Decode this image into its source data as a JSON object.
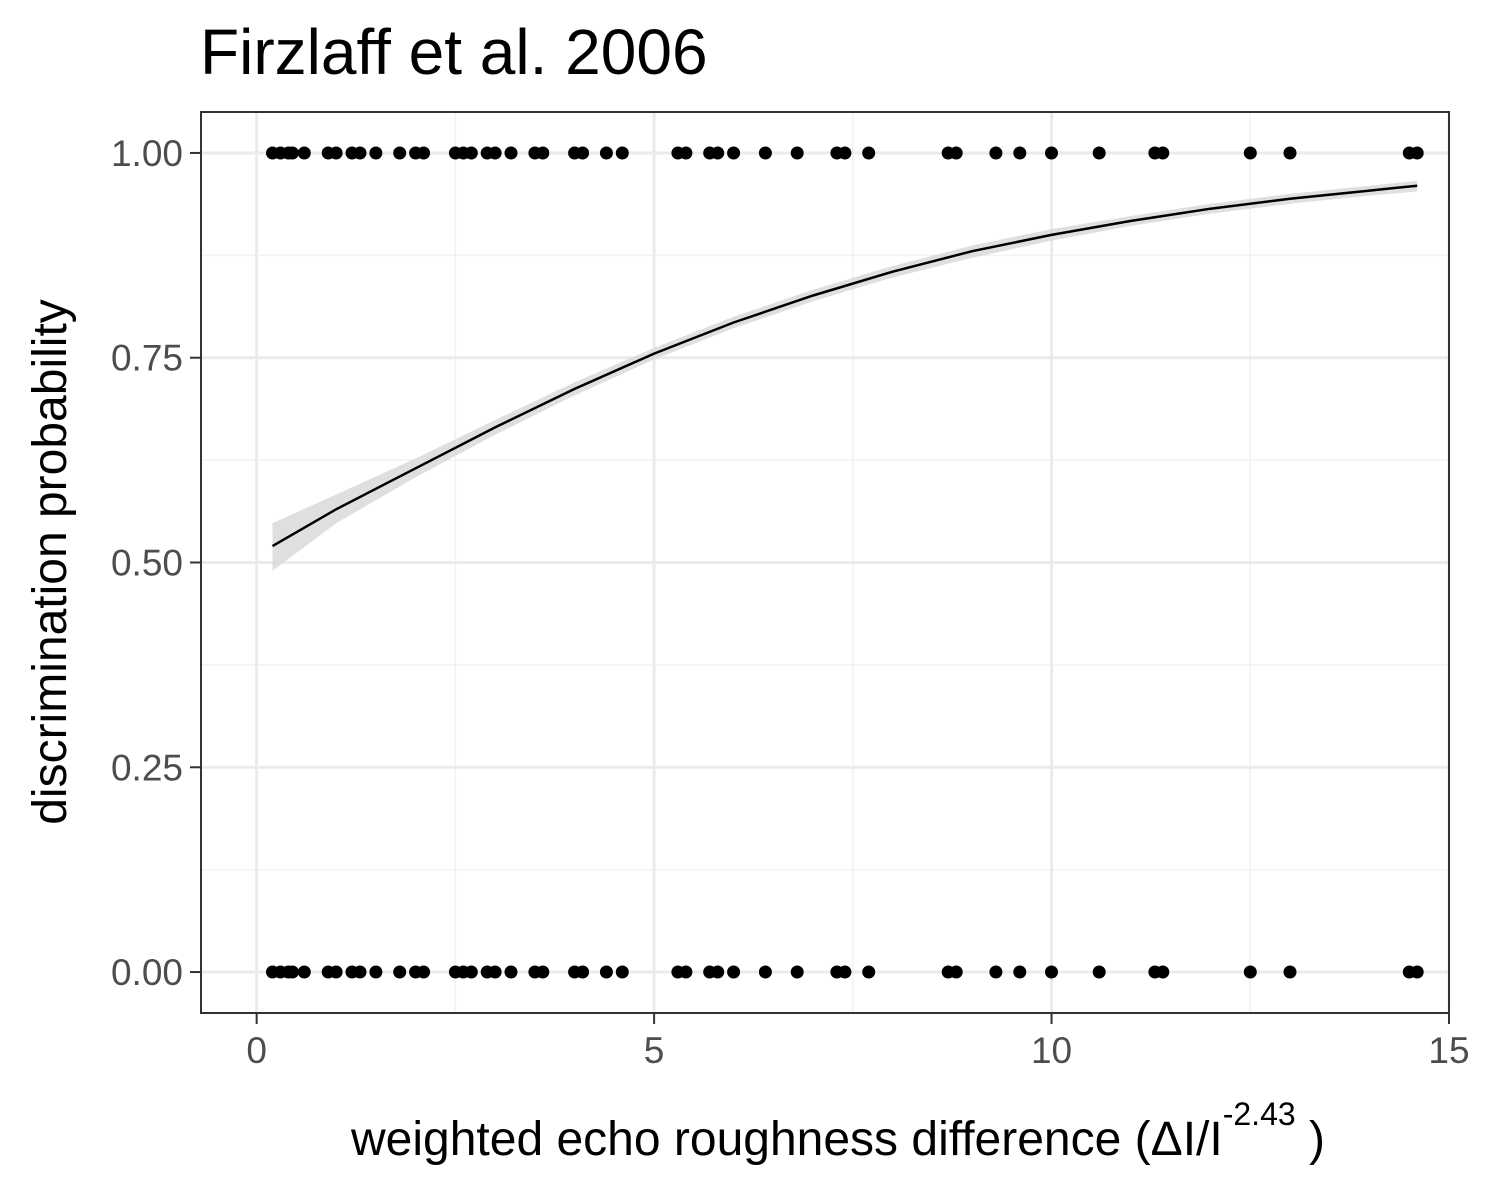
{
  "chart_data": {
    "type": "scatter",
    "title": "Firzlaff et al. 2006",
    "xlabel": {
      "main": "weighted  echo roughness  difference (ΔI/I",
      "sup": "-2.43",
      "close": " )"
    },
    "ylabel": "discrimination probability",
    "xlim": [
      -0.7,
      15
    ],
    "ylim": [
      -0.05,
      1.05
    ],
    "x_ticks": [
      0,
      5,
      10,
      15
    ],
    "x_tick_labels": [
      "0",
      "5",
      "10",
      "15"
    ],
    "y_ticks": [
      0,
      0.25,
      0.5,
      0.75,
      1
    ],
    "y_tick_labels": [
      "0.00",
      "0.25",
      "0.50",
      "0.75",
      "1.00"
    ],
    "grid": true,
    "theme": "bw",
    "series": [
      {
        "kind": "points",
        "color": "#000000",
        "x": [
          0.2,
          0.3,
          0.4,
          0.45,
          0.6,
          0.9,
          1.0,
          1.2,
          1.3,
          1.5,
          1.8,
          2.0,
          2.1,
          2.5,
          2.6,
          2.7,
          2.9,
          3.0,
          3.2,
          3.5,
          3.6,
          4.0,
          4.1,
          4.4,
          4.6,
          5.3,
          5.4,
          5.7,
          5.8,
          6.0,
          6.4,
          6.8,
          7.3,
          7.4,
          7.7,
          8.7,
          8.8,
          9.3,
          9.6,
          10.0,
          10.6,
          11.3,
          11.4,
          12.5,
          13.0,
          14.5,
          14.6
        ],
        "y": [
          1,
          1,
          1,
          1,
          1,
          1,
          1,
          1,
          1,
          1,
          1,
          1,
          1,
          1,
          1,
          1,
          1,
          1,
          1,
          1,
          1,
          1,
          1,
          1,
          1,
          1,
          1,
          1,
          1,
          1,
          1,
          1,
          1,
          1,
          1,
          1,
          1,
          1,
          1,
          1,
          1,
          1,
          1,
          1,
          1,
          1,
          1
        ]
      },
      {
        "kind": "points",
        "color": "#000000",
        "x": [
          0.2,
          0.3,
          0.4,
          0.45,
          0.6,
          0.9,
          1.0,
          1.2,
          1.3,
          1.5,
          1.8,
          2.0,
          2.1,
          2.5,
          2.6,
          2.7,
          2.9,
          3.0,
          3.2,
          3.5,
          3.6,
          4.0,
          4.1,
          4.4,
          4.6,
          5.3,
          5.4,
          5.7,
          5.8,
          6.0,
          6.4,
          6.8,
          7.3,
          7.4,
          7.7,
          8.7,
          8.8,
          9.3,
          9.6,
          10.0,
          10.6,
          11.3,
          11.4,
          12.5,
          13.0,
          14.5,
          14.6
        ],
        "y": [
          0,
          0,
          0,
          0,
          0,
          0,
          0,
          0,
          0,
          0,
          0,
          0,
          0,
          0,
          0,
          0,
          0,
          0,
          0,
          0,
          0,
          0,
          0,
          0,
          0,
          0,
          0,
          0,
          0,
          0,
          0,
          0,
          0,
          0,
          0,
          0,
          0,
          0,
          0,
          0,
          0,
          0,
          0,
          0,
          0,
          0,
          0
        ]
      },
      {
        "kind": "fit",
        "color": "#000000",
        "band_color": "#d9d9d9",
        "x": [
          0.2,
          1,
          2,
          3,
          4,
          5,
          6,
          7,
          8,
          9,
          10,
          11,
          12,
          13,
          14,
          14.6
        ],
        "y": [
          0.52,
          0.565,
          0.615,
          0.665,
          0.712,
          0.755,
          0.793,
          0.826,
          0.855,
          0.88,
          0.9,
          0.917,
          0.932,
          0.944,
          0.954,
          0.96
        ],
        "y_lower": [
          0.49,
          0.548,
          0.604,
          0.656,
          0.704,
          0.748,
          0.786,
          0.819,
          0.848,
          0.872,
          0.893,
          0.911,
          0.926,
          0.938,
          0.948,
          0.953
        ],
        "y_upper": [
          0.548,
          0.583,
          0.627,
          0.674,
          0.72,
          0.762,
          0.8,
          0.833,
          0.862,
          0.887,
          0.907,
          0.923,
          0.938,
          0.95,
          0.96,
          0.966
        ]
      }
    ]
  }
}
